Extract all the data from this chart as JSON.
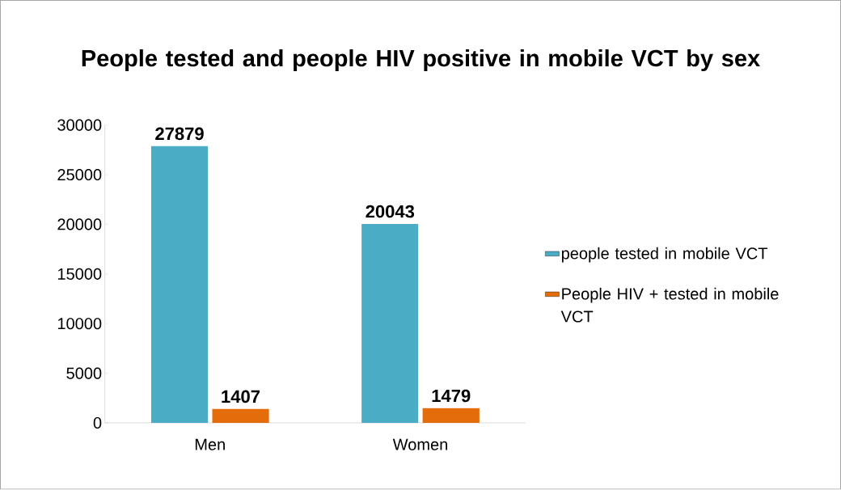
{
  "chart_data": {
    "type": "bar",
    "title": "People tested and people HIV positive in mobile VCT by sex",
    "categories": [
      "Men",
      "Women"
    ],
    "series": [
      {
        "name": "people tested in mobile VCT",
        "color": "#4bacc6",
        "values": [
          27879,
          20043
        ]
      },
      {
        "name": "People HIV + tested in mobile VCT",
        "color": "#e46c0a",
        "values": [
          1407,
          1479
        ]
      }
    ],
    "ylim": [
      0,
      30000
    ],
    "yticks": [
      0,
      5000,
      10000,
      15000,
      20000,
      25000,
      30000
    ],
    "grid": false,
    "legend": "right",
    "data_labels": true
  }
}
